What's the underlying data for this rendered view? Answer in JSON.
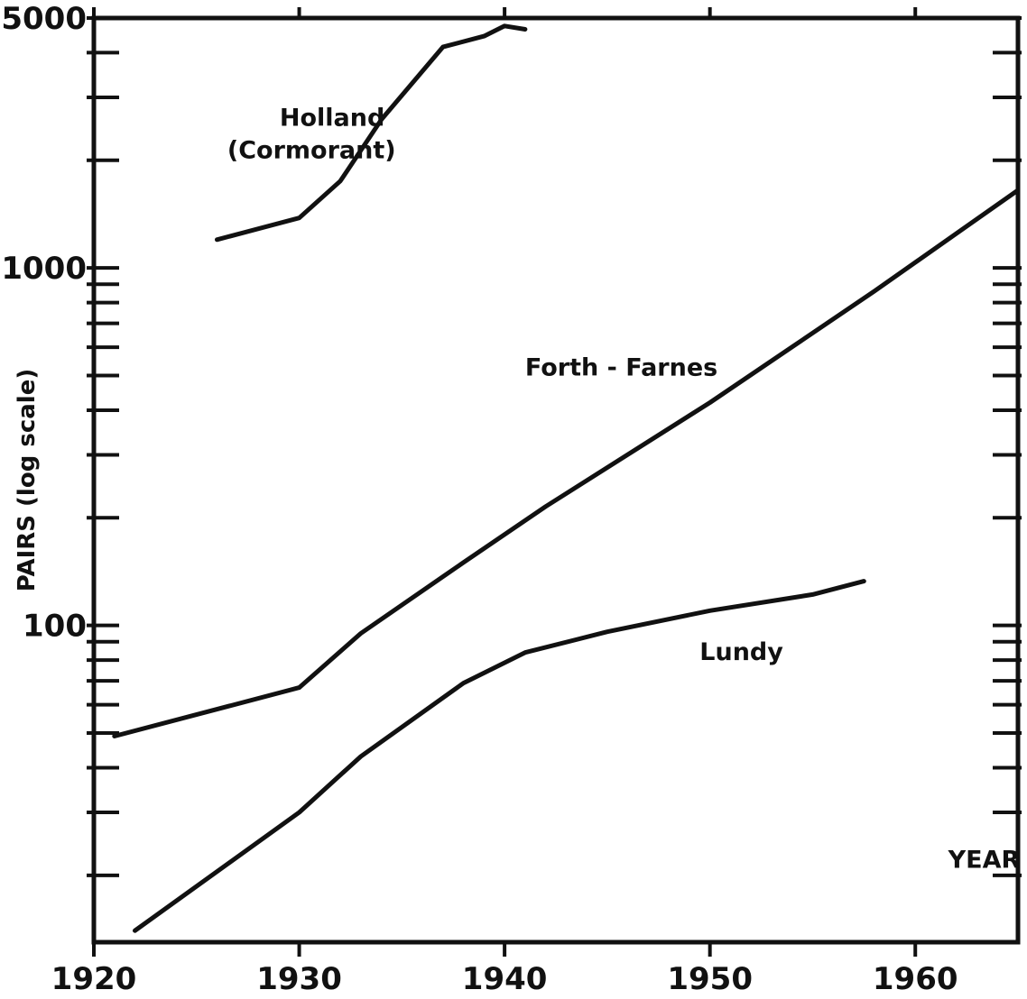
{
  "chart_data": {
    "type": "line",
    "title": "",
    "xlabel": "YEAR",
    "ylabel": "PAIRS (log scale)",
    "yscale": "log",
    "xlim": [
      1920,
      1965
    ],
    "ylim": [
      13,
      5000
    ],
    "x_ticks": [
      1920,
      1930,
      1940,
      1950,
      1960
    ],
    "x_tick_labels": [
      "1920",
      "1930",
      "1940",
      "1950",
      "1960"
    ],
    "y_tick_labels": [
      {
        "value": 100,
        "label": "100"
      },
      {
        "value": 1000,
        "label": "1000"
      },
      {
        "value": 5000,
        "label": "5000"
      }
    ],
    "y_minor_ticks": [
      20,
      30,
      40,
      50,
      60,
      70,
      80,
      90,
      200,
      300,
      400,
      500,
      600,
      700,
      800,
      900,
      2000,
      3000,
      4000
    ],
    "grid": false,
    "line_color": "#111111",
    "series": [
      {
        "name": "Holland (Cormorant)",
        "label_lines": [
          "Holland",
          "(Cormorant)"
        ],
        "label_anchor": {
          "x": 1926.5,
          "y": 2500
        },
        "x": [
          1926,
          1930,
          1932,
          1934,
          1937,
          1939,
          1940,
          1941
        ],
        "y": [
          1200,
          1380,
          1750,
          2600,
          4150,
          4450,
          4750,
          4650
        ]
      },
      {
        "name": "Forth - Farnes",
        "label_anchor": {
          "x": 1941,
          "y": 500
        },
        "x": [
          1921,
          1930,
          1933,
          1938,
          1942,
          1950,
          1958,
          1965
        ],
        "y": [
          49,
          67,
          95,
          150,
          215,
          420,
          860,
          1650
        ]
      },
      {
        "name": "Lundy",
        "label_anchor": {
          "x": 1949.5,
          "y": 80
        },
        "x": [
          1922,
          1930,
          1933,
          1938,
          1941,
          1945,
          1950,
          1955,
          1957.5
        ],
        "y": [
          14,
          30,
          43,
          69,
          84,
          96,
          110,
          122,
          133
        ]
      }
    ],
    "annotations": [
      {
        "text": "YEAR",
        "x": 1961.6,
        "y": 21
      }
    ]
  }
}
